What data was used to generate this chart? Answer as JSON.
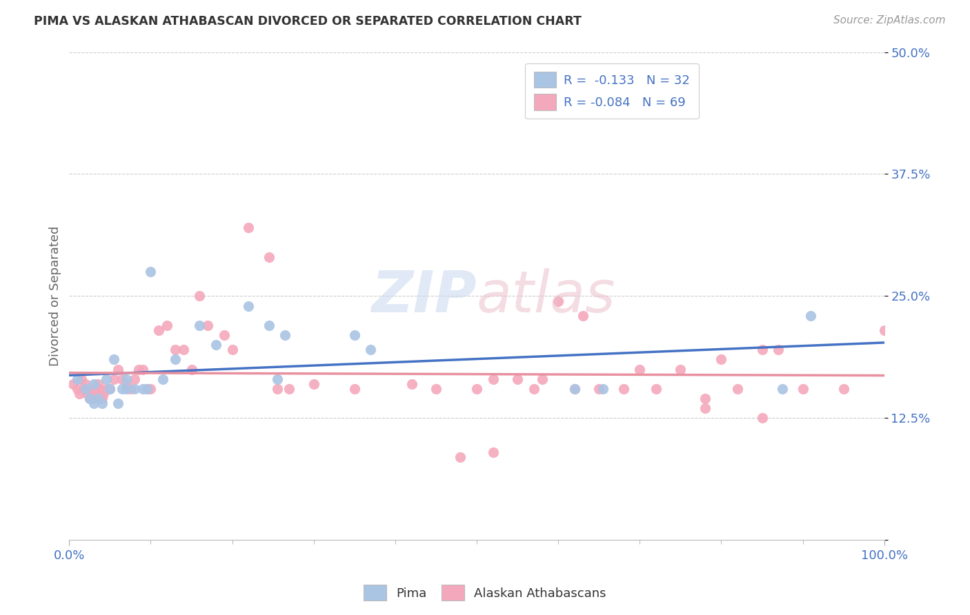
{
  "title": "PIMA VS ALASKAN ATHABASCAN DIVORCED OR SEPARATED CORRELATION CHART",
  "source_text": "Source: ZipAtlas.com",
  "ylabel": "Divorced or Separated",
  "xmin": 0.0,
  "xmax": 1.0,
  "ymin": 0.0,
  "ymax": 0.5,
  "yticks": [
    0.0,
    0.125,
    0.25,
    0.375,
    0.5
  ],
  "ytick_labels": [
    "",
    "12.5%",
    "25.0%",
    "37.5%",
    "50.0%"
  ],
  "xtick_labels": [
    "0.0%",
    "100.0%"
  ],
  "legend_r1": "R =  -0.133   N = 32",
  "legend_r2": "R = -0.084   N = 69",
  "pima_color": "#aac4e4",
  "athabascan_color": "#f4a8bc",
  "pima_line_color": "#4472c4",
  "athabascan_line_color": "#e8909f",
  "pima_scatter_x": [
    0.01,
    0.02,
    0.025,
    0.03,
    0.03,
    0.035,
    0.04,
    0.045,
    0.05,
    0.055,
    0.06,
    0.065,
    0.07,
    0.07,
    0.08,
    0.09,
    0.095,
    0.1,
    0.115,
    0.13,
    0.16,
    0.18,
    0.22,
    0.245,
    0.255,
    0.265,
    0.35,
    0.37,
    0.62,
    0.655,
    0.875,
    0.91
  ],
  "pima_scatter_y": [
    0.165,
    0.155,
    0.145,
    0.14,
    0.16,
    0.145,
    0.14,
    0.165,
    0.155,
    0.185,
    0.14,
    0.155,
    0.155,
    0.165,
    0.155,
    0.155,
    0.155,
    0.275,
    0.165,
    0.185,
    0.22,
    0.2,
    0.24,
    0.22,
    0.165,
    0.21,
    0.21,
    0.195,
    0.155,
    0.155,
    0.155,
    0.23
  ],
  "athabascan_scatter_x": [
    0.005,
    0.01,
    0.012,
    0.015,
    0.018,
    0.02,
    0.022,
    0.025,
    0.028,
    0.03,
    0.032,
    0.035,
    0.038,
    0.04,
    0.042,
    0.045,
    0.05,
    0.055,
    0.06,
    0.065,
    0.07,
    0.075,
    0.08,
    0.085,
    0.09,
    0.095,
    0.1,
    0.11,
    0.12,
    0.13,
    0.14,
    0.15,
    0.16,
    0.17,
    0.19,
    0.2,
    0.22,
    0.245,
    0.255,
    0.27,
    0.3,
    0.35,
    0.42,
    0.45,
    0.48,
    0.5,
    0.52,
    0.52,
    0.55,
    0.57,
    0.58,
    0.6,
    0.62,
    0.63,
    0.65,
    0.68,
    0.7,
    0.72,
    0.75,
    0.78,
    0.78,
    0.8,
    0.82,
    0.85,
    0.85,
    0.87,
    0.9,
    0.95,
    1.0
  ],
  "athabascan_scatter_y": [
    0.16,
    0.155,
    0.15,
    0.165,
    0.155,
    0.16,
    0.15,
    0.145,
    0.15,
    0.145,
    0.155,
    0.16,
    0.155,
    0.145,
    0.15,
    0.155,
    0.155,
    0.165,
    0.175,
    0.165,
    0.16,
    0.155,
    0.165,
    0.175,
    0.175,
    0.155,
    0.155,
    0.215,
    0.22,
    0.195,
    0.195,
    0.175,
    0.25,
    0.22,
    0.21,
    0.195,
    0.32,
    0.29,
    0.155,
    0.155,
    0.16,
    0.155,
    0.16,
    0.155,
    0.085,
    0.155,
    0.09,
    0.165,
    0.165,
    0.155,
    0.165,
    0.245,
    0.155,
    0.23,
    0.155,
    0.155,
    0.175,
    0.155,
    0.175,
    0.145,
    0.135,
    0.185,
    0.155,
    0.195,
    0.125,
    0.195,
    0.155,
    0.155,
    0.215
  ]
}
